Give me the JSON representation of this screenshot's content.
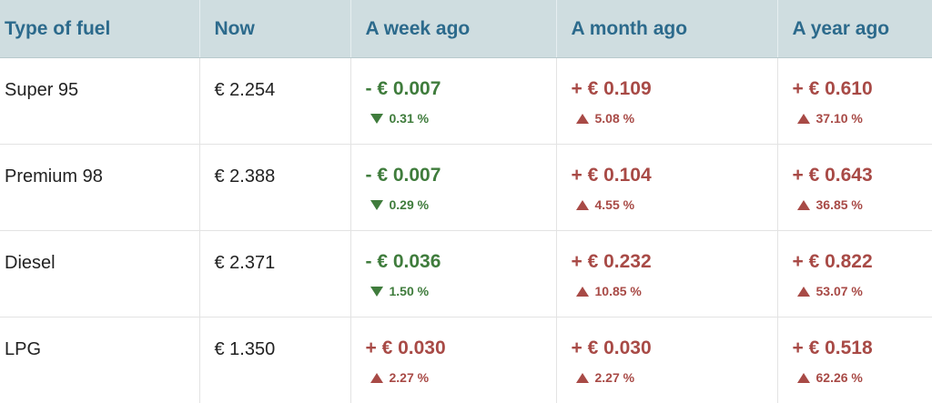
{
  "colors": {
    "header_bg": "#cfdde0",
    "header_text": "#2c6a8c",
    "increase": "#a84a46",
    "decrease": "#3f7c3c"
  },
  "table": {
    "headers": [
      "Type of fuel",
      "Now",
      "A week ago",
      "A month ago",
      "A year ago"
    ],
    "rows": [
      {
        "fuel": "Super 95",
        "now": "€ 2.254",
        "week": {
          "amount": "- € 0.007",
          "percent": "0.31 %",
          "direction": "down"
        },
        "month": {
          "amount": "+ € 0.109",
          "percent": "5.08 %",
          "direction": "up"
        },
        "year": {
          "amount": "+ € 0.610",
          "percent": "37.10 %",
          "direction": "up"
        }
      },
      {
        "fuel": "Premium 98",
        "now": "€ 2.388",
        "week": {
          "amount": "- € 0.007",
          "percent": "0.29 %",
          "direction": "down"
        },
        "month": {
          "amount": "+ € 0.104",
          "percent": "4.55 %",
          "direction": "up"
        },
        "year": {
          "amount": "+ € 0.643",
          "percent": "36.85 %",
          "direction": "up"
        }
      },
      {
        "fuel": "Diesel",
        "now": "€ 2.371",
        "week": {
          "amount": "- € 0.036",
          "percent": "1.50 %",
          "direction": "down"
        },
        "month": {
          "amount": "+ € 0.232",
          "percent": "10.85 %",
          "direction": "up"
        },
        "year": {
          "amount": "+ € 0.822",
          "percent": "53.07 %",
          "direction": "up"
        }
      },
      {
        "fuel": "LPG",
        "now": "€ 1.350",
        "week": {
          "amount": "+ € 0.030",
          "percent": "2.27 %",
          "direction": "up"
        },
        "month": {
          "amount": "+ € 0.030",
          "percent": "2.27 %",
          "direction": "up"
        },
        "year": {
          "amount": "+ € 0.518",
          "percent": "62.26 %",
          "direction": "up"
        }
      }
    ]
  }
}
